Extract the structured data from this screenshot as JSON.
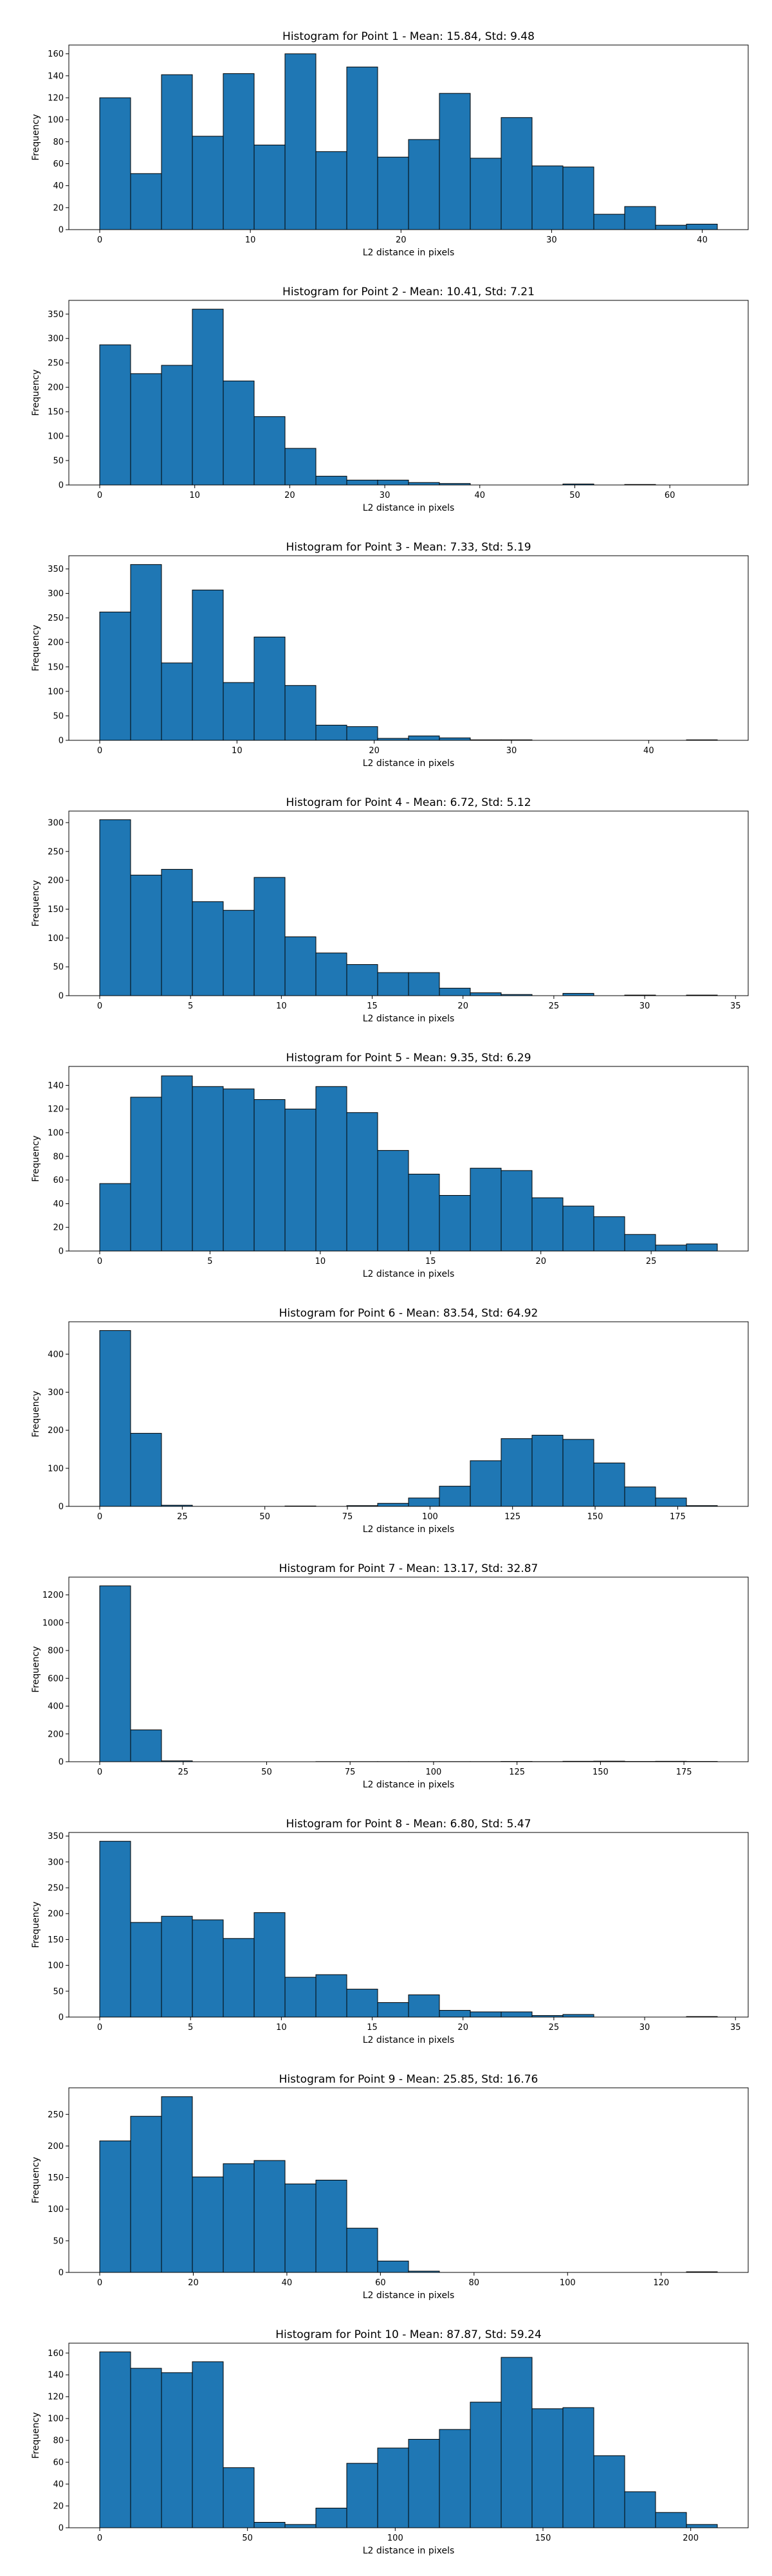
{
  "chart_data": [
    {
      "type": "bar",
      "title": "Histogram for Point 1 - Mean: 15.84, Std: 9.48",
      "xlabel": "L2 distance in pixels",
      "ylabel": "Frequency",
      "bin_start": 0.0,
      "bin_width": 2.05,
      "values": [
        120,
        51,
        141,
        85,
        142,
        77,
        160,
        71,
        148,
        66,
        82,
        124,
        65,
        102,
        58,
        57,
        14,
        21,
        4,
        5
      ],
      "xlim": [
        -2.05,
        43.05
      ],
      "ylim": [
        0,
        168
      ],
      "xticks": [
        0,
        10,
        20,
        30,
        40
      ],
      "xtick_labels": [
        "0",
        "10",
        "20",
        "30",
        "40"
      ],
      "yticks": [
        0,
        20,
        40,
        60,
        80,
        100,
        120,
        140,
        160
      ],
      "ytick_labels": [
        "0",
        "20",
        "40",
        "60",
        "80",
        "100",
        "120",
        "140",
        "160"
      ]
    },
    {
      "type": "bar",
      "title": "Histogram for Point 2 - Mean: 10.41, Std: 7.21",
      "xlabel": "L2 distance in pixels",
      "ylabel": "Frequency",
      "bin_start": 0.0,
      "bin_width": 3.25,
      "values": [
        287,
        228,
        245,
        360,
        213,
        140,
        75,
        18,
        10,
        10,
        5,
        3,
        0,
        0,
        0,
        2,
        0,
        1,
        0,
        0
      ],
      "xlim": [
        -3.25,
        68.25
      ],
      "ylim": [
        0,
        378
      ],
      "xticks": [
        0,
        10,
        20,
        30,
        40,
        50,
        60
      ],
      "xtick_labels": [
        "0",
        "10",
        "20",
        "30",
        "40",
        "50",
        "60"
      ],
      "yticks": [
        0,
        50,
        100,
        150,
        200,
        250,
        300,
        350
      ],
      "ytick_labels": [
        "0",
        "50",
        "100",
        "150",
        "200",
        "250",
        "300",
        "350"
      ]
    },
    {
      "type": "bar",
      "title": "Histogram for Point 3 - Mean: 7.33, Std: 5.19",
      "xlabel": "L2 distance in pixels",
      "ylabel": "Frequency",
      "bin_start": 0.0,
      "bin_width": 2.25,
      "values": [
        262,
        359,
        158,
        307,
        118,
        211,
        112,
        31,
        28,
        4,
        9,
        5,
        1,
        1,
        0,
        0,
        0,
        0,
        0,
        1
      ],
      "xlim": [
        -2.25,
        47.25
      ],
      "ylim": [
        0,
        377
      ],
      "xticks": [
        0,
        10,
        20,
        30,
        40
      ],
      "xtick_labels": [
        "0",
        "10",
        "20",
        "30",
        "40"
      ],
      "yticks": [
        0,
        50,
        100,
        150,
        200,
        250,
        300,
        350
      ],
      "ytick_labels": [
        "0",
        "50",
        "100",
        "150",
        "200",
        "250",
        "300",
        "350"
      ]
    },
    {
      "type": "bar",
      "title": "Histogram for Point 4 - Mean: 6.72, Std: 5.12",
      "xlabel": "L2 distance in pixels",
      "ylabel": "Frequency",
      "bin_start": 0.0,
      "bin_width": 1.7,
      "values": [
        305,
        209,
        219,
        163,
        148,
        205,
        102,
        74,
        54,
        40,
        40,
        13,
        5,
        2,
        0,
        4,
        0,
        1,
        0,
        1
      ],
      "xlim": [
        -1.7,
        35.7
      ],
      "ylim": [
        0,
        320
      ],
      "xticks": [
        0,
        5,
        10,
        15,
        20,
        25,
        30,
        35
      ],
      "xtick_labels": [
        "0",
        "5",
        "10",
        "15",
        "20",
        "25",
        "30",
        "35"
      ],
      "yticks": [
        0,
        50,
        100,
        150,
        200,
        250,
        300
      ],
      "ytick_labels": [
        "0",
        "50",
        "100",
        "150",
        "200",
        "250",
        "300"
      ]
    },
    {
      "type": "bar",
      "title": "Histogram for Point 5 - Mean: 9.35, Std: 6.29",
      "xlabel": "L2 distance in pixels",
      "ylabel": "Frequency",
      "bin_start": 0.0,
      "bin_width": 1.4,
      "values": [
        57,
        130,
        148,
        139,
        137,
        128,
        120,
        139,
        117,
        85,
        65,
        47,
        70,
        68,
        45,
        38,
        29,
        14,
        5,
        6
      ],
      "xlim": [
        -1.4,
        29.4
      ],
      "ylim": [
        0,
        156
      ],
      "xticks": [
        0,
        5,
        10,
        15,
        20,
        25
      ],
      "xtick_labels": [
        "0",
        "5",
        "10",
        "15",
        "20",
        "25"
      ],
      "yticks": [
        0,
        20,
        40,
        60,
        80,
        100,
        120,
        140
      ],
      "ytick_labels": [
        "0",
        "20",
        "40",
        "60",
        "80",
        "100",
        "120",
        "140"
      ]
    },
    {
      "type": "bar",
      "title": "Histogram for Point 6 - Mean: 83.54, Std: 64.92",
      "xlabel": "L2 distance in pixels",
      "ylabel": "Frequency",
      "bin_start": 0.0,
      "bin_width": 9.35,
      "values": [
        462,
        192,
        3,
        0,
        0,
        0,
        1,
        0,
        2,
        8,
        22,
        53,
        120,
        178,
        187,
        176,
        114,
        51,
        22,
        2
      ],
      "xlim": [
        -9.35,
        196.35
      ],
      "ylim": [
        0,
        485
      ],
      "xticks": [
        0,
        25,
        50,
        75,
        100,
        125,
        150,
        175
      ],
      "xtick_labels": [
        "0",
        "25",
        "50",
        "75",
        "100",
        "125",
        "150",
        "175"
      ],
      "yticks": [
        0,
        100,
        200,
        300,
        400
      ],
      "ytick_labels": [
        "0",
        "100",
        "200",
        "300",
        "400"
      ]
    },
    {
      "type": "bar",
      "title": "Histogram for Point 7 - Mean: 13.17, Std: 32.87",
      "xlabel": "L2 distance in pixels",
      "ylabel": "Frequency",
      "bin_start": 0.0,
      "bin_width": 9.25,
      "values": [
        1265,
        229,
        6,
        0,
        0,
        0,
        0,
        1,
        1,
        1,
        1,
        1,
        1,
        2,
        1,
        3,
        4,
        2,
        3,
        2
      ],
      "xlim": [
        -9.25,
        194.25
      ],
      "ylim": [
        0,
        1328
      ],
      "xticks": [
        0,
        25,
        50,
        75,
        100,
        125,
        150,
        175
      ],
      "xtick_labels": [
        "0",
        "25",
        "50",
        "75",
        "100",
        "125",
        "150",
        "175"
      ],
      "yticks": [
        0,
        200,
        400,
        600,
        800,
        1000,
        1200
      ],
      "ytick_labels": [
        "0",
        "200",
        "400",
        "600",
        "800",
        "1000",
        "1200"
      ]
    },
    {
      "type": "bar",
      "title": "Histogram for Point 8 - Mean: 6.80, Std: 5.47",
      "xlabel": "L2 distance in pixels",
      "ylabel": "Frequency",
      "bin_start": 0.0,
      "bin_width": 1.7,
      "values": [
        340,
        183,
        195,
        188,
        152,
        202,
        77,
        82,
        54,
        28,
        43,
        13,
        10,
        10,
        3,
        5,
        0,
        0,
        0,
        1
      ],
      "xlim": [
        -1.7,
        35.7
      ],
      "ylim": [
        0,
        357
      ],
      "xticks": [
        0,
        5,
        10,
        15,
        20,
        25,
        30,
        35
      ],
      "xtick_labels": [
        "0",
        "5",
        "10",
        "15",
        "20",
        "25",
        "30",
        "35"
      ],
      "yticks": [
        0,
        50,
        100,
        150,
        200,
        250,
        300,
        350
      ],
      "ytick_labels": [
        "0",
        "50",
        "100",
        "150",
        "200",
        "250",
        "300",
        "350"
      ]
    },
    {
      "type": "bar",
      "title": "Histogram for Point 9 - Mean: 25.85, Std: 16.76",
      "xlabel": "L2 distance in pixels",
      "ylabel": "Frequency",
      "bin_start": 0.0,
      "bin_width": 6.6,
      "values": [
        208,
        247,
        278,
        151,
        172,
        177,
        140,
        146,
        70,
        18,
        2,
        0,
        0,
        0,
        0,
        0,
        0,
        0,
        0,
        1
      ],
      "xlim": [
        -6.6,
        138.6
      ],
      "ylim": [
        0,
        292
      ],
      "xticks": [
        0,
        20,
        40,
        60,
        80,
        100,
        120
      ],
      "xtick_labels": [
        "0",
        "20",
        "40",
        "60",
        "80",
        "100",
        "120"
      ],
      "yticks": [
        0,
        50,
        100,
        150,
        200,
        250
      ],
      "ytick_labels": [
        "0",
        "50",
        "100",
        "150",
        "200",
        "250"
      ]
    },
    {
      "type": "bar",
      "title": "Histogram for Point 10 - Mean: 87.87, Std: 59.24",
      "xlabel": "L2 distance in pixels",
      "ylabel": "Frequency",
      "bin_start": 0.0,
      "bin_width": 10.45,
      "values": [
        161,
        146,
        142,
        152,
        55,
        5,
        3,
        18,
        59,
        73,
        81,
        90,
        115,
        156,
        109,
        110,
        66,
        33,
        14,
        3
      ],
      "xlim": [
        -10.45,
        219.45
      ],
      "ylim": [
        0,
        169
      ],
      "xticks": [
        0,
        50,
        100,
        150,
        200
      ],
      "xtick_labels": [
        "0",
        "50",
        "100",
        "150",
        "200"
      ],
      "yticks": [
        0,
        20,
        40,
        60,
        80,
        100,
        120,
        140,
        160
      ],
      "ytick_labels": [
        "0",
        "20",
        "40",
        "60",
        "80",
        "100",
        "120",
        "140",
        "160"
      ]
    }
  ]
}
